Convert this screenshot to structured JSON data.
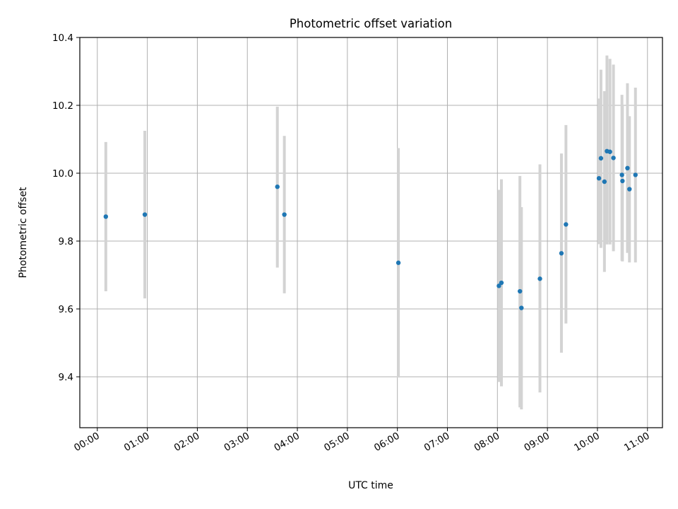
{
  "chart_data": {
    "type": "scatter",
    "title": "Photometric offset variation",
    "xlabel": "UTC time",
    "ylabel": "Photometric offset",
    "x_unit": "hours",
    "xlim": [
      -0.35,
      11.3
    ],
    "ylim": [
      9.25,
      10.4
    ],
    "x_ticks": [
      {
        "value": 0,
        "label": "00:00"
      },
      {
        "value": 1,
        "label": "01:00"
      },
      {
        "value": 2,
        "label": "02:00"
      },
      {
        "value": 3,
        "label": "03:00"
      },
      {
        "value": 4,
        "label": "04:00"
      },
      {
        "value": 5,
        "label": "05:00"
      },
      {
        "value": 6,
        "label": "06:00"
      },
      {
        "value": 7,
        "label": "07:00"
      },
      {
        "value": 8,
        "label": "08:00"
      },
      {
        "value": 9,
        "label": "09:00"
      },
      {
        "value": 10,
        "label": "10:00"
      },
      {
        "value": 11,
        "label": "11:00"
      }
    ],
    "y_ticks": [
      {
        "value": 9.4,
        "label": "9.4"
      },
      {
        "value": 9.6,
        "label": "9.6"
      },
      {
        "value": 9.8,
        "label": "9.8"
      },
      {
        "value": 10.0,
        "label": "10.0"
      },
      {
        "value": 10.2,
        "label": "10.2"
      },
      {
        "value": 10.4,
        "label": "10.4"
      }
    ],
    "grid": true,
    "point_color": "#1f77b4",
    "errorbar_color": "#d3d3d3",
    "points": [
      {
        "x": 0.17,
        "y": 9.872,
        "lo": 9.652,
        "hi": 10.092
      },
      {
        "x": 0.95,
        "y": 9.878,
        "lo": 9.631,
        "hi": 10.125
      },
      {
        "x": 3.6,
        "y": 9.96,
        "lo": 9.722,
        "hi": 10.196
      },
      {
        "x": 3.74,
        "y": 9.878,
        "lo": 9.646,
        "hi": 10.11
      },
      {
        "x": 6.02,
        "y": 9.736,
        "lo": 9.398,
        "hi": 10.074
      },
      {
        "x": 8.03,
        "y": 9.668,
        "lo": 9.385,
        "hi": 9.951
      },
      {
        "x": 8.08,
        "y": 9.677,
        "lo": 9.372,
        "hi": 9.982
      },
      {
        "x": 8.45,
        "y": 9.652,
        "lo": 9.31,
        "hi": 9.992
      },
      {
        "x": 8.48,
        "y": 9.603,
        "lo": 9.304,
        "hi": 9.9
      },
      {
        "x": 8.85,
        "y": 9.689,
        "lo": 9.354,
        "hi": 10.026
      },
      {
        "x": 9.28,
        "y": 9.764,
        "lo": 9.471,
        "hi": 10.058
      },
      {
        "x": 9.37,
        "y": 9.849,
        "lo": 9.557,
        "hi": 10.142
      },
      {
        "x": 10.03,
        "y": 9.985,
        "lo": 9.791,
        "hi": 10.22
      },
      {
        "x": 10.07,
        "y": 10.044,
        "lo": 9.78,
        "hi": 10.305
      },
      {
        "x": 10.14,
        "y": 9.975,
        "lo": 9.709,
        "hi": 10.242
      },
      {
        "x": 10.19,
        "y": 10.065,
        "lo": 9.79,
        "hi": 10.347
      },
      {
        "x": 10.25,
        "y": 10.063,
        "lo": 9.79,
        "hi": 10.337
      },
      {
        "x": 10.32,
        "y": 10.045,
        "lo": 9.77,
        "hi": 10.32
      },
      {
        "x": 10.49,
        "y": 9.995,
        "lo": 9.742,
        "hi": 10.231
      },
      {
        "x": 10.5,
        "y": 9.977,
        "lo": 9.74,
        "hi": 10.2
      },
      {
        "x": 10.6,
        "y": 10.015,
        "lo": 9.765,
        "hi": 10.265
      },
      {
        "x": 10.64,
        "y": 9.953,
        "lo": 9.737,
        "hi": 10.168
      },
      {
        "x": 10.76,
        "y": 9.995,
        "lo": 9.737,
        "hi": 10.252
      }
    ]
  }
}
